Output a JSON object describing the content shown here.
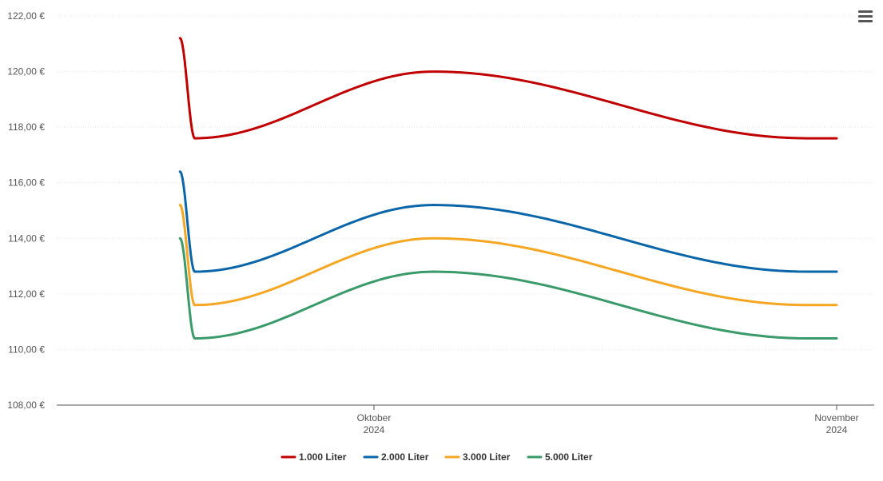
{
  "chart_data": {
    "type": "line",
    "title": "",
    "xlabel": "",
    "ylabel": "",
    "ylim": [
      108,
      122
    ],
    "yticks": [
      "122,00 €",
      "120,00 €",
      "118,00 €",
      "116,00 €",
      "114,00 €",
      "112,00 €",
      "110,00 €",
      "108,00 €"
    ],
    "xticks": [
      {
        "line1": "Oktober",
        "line2": "2024"
      },
      {
        "line1": "November",
        "line2": "2024"
      }
    ],
    "x": [
      "2024-09-18",
      "2024-09-19",
      "2024-10-05",
      "2024-10-30",
      "2024-11-01"
    ],
    "series": [
      {
        "name": "1.000 Liter",
        "color": "#c00000",
        "values": [
          121.2,
          117.6,
          120.0,
          117.6,
          117.6
        ]
      },
      {
        "name": "2.000 Liter",
        "color": "#0a66a8",
        "values": [
          116.4,
          112.8,
          115.2,
          112.8,
          112.8
        ]
      },
      {
        "name": "3.000 Liter",
        "color": "#f5a623",
        "values": [
          115.2,
          111.6,
          114.0,
          111.6,
          111.6
        ]
      },
      {
        "name": "5.000 Liter",
        "color": "#3a9a6a",
        "values": [
          114.0,
          110.4,
          112.8,
          110.4,
          110.4
        ]
      }
    ],
    "grid": true,
    "legend_position": "bottom-center"
  },
  "menu": {
    "icon": "hamburger-menu-icon"
  }
}
